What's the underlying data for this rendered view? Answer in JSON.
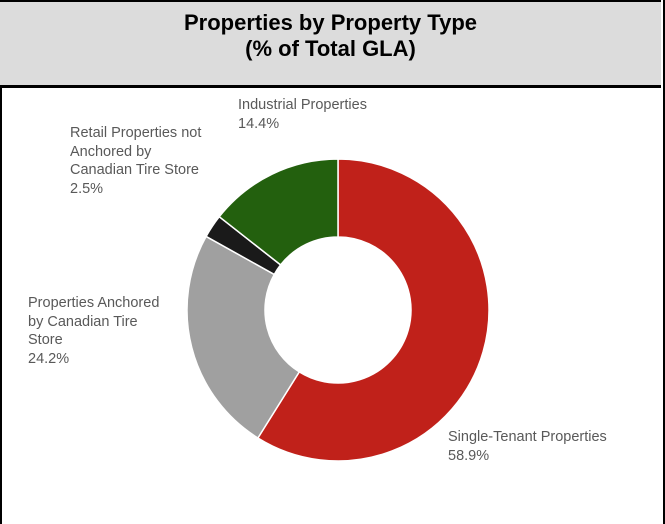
{
  "chart_data": {
    "type": "pie",
    "variant": "donut",
    "title": "Properties by Property Type",
    "subtitle": "(% of Total GLA)",
    "slices": [
      {
        "label": "Single-Tenant Properties",
        "value": 58.9,
        "value_text": "58.9%",
        "color": "#c0211a"
      },
      {
        "label": "Properties Anchored by Canadian Tire Store",
        "value": 24.2,
        "value_text": "24.2%",
        "color": "#a0a0a0"
      },
      {
        "label": "Retail Properties not Anchored by Canadian Tire Store",
        "value": 2.5,
        "value_text": "2.5%",
        "color": "#1a1a1a"
      },
      {
        "label": "Industrial Properties",
        "value": 14.4,
        "value_text": "14.4%",
        "color": "#23600e"
      }
    ],
    "label_lines": {
      "single_tenant": [
        "Single-Tenant Properties",
        "58.9%"
      ],
      "anchored": [
        "Properties Anchored",
        "by Canadian Tire",
        "Store",
        "24.2%"
      ],
      "retail_not_anchored": [
        "Retail Properties not",
        "Anchored by",
        "Canadian Tire Store",
        "2.5%"
      ],
      "industrial": [
        "Industrial Properties",
        "14.4%"
      ]
    },
    "legend": "none",
    "grid": false
  }
}
